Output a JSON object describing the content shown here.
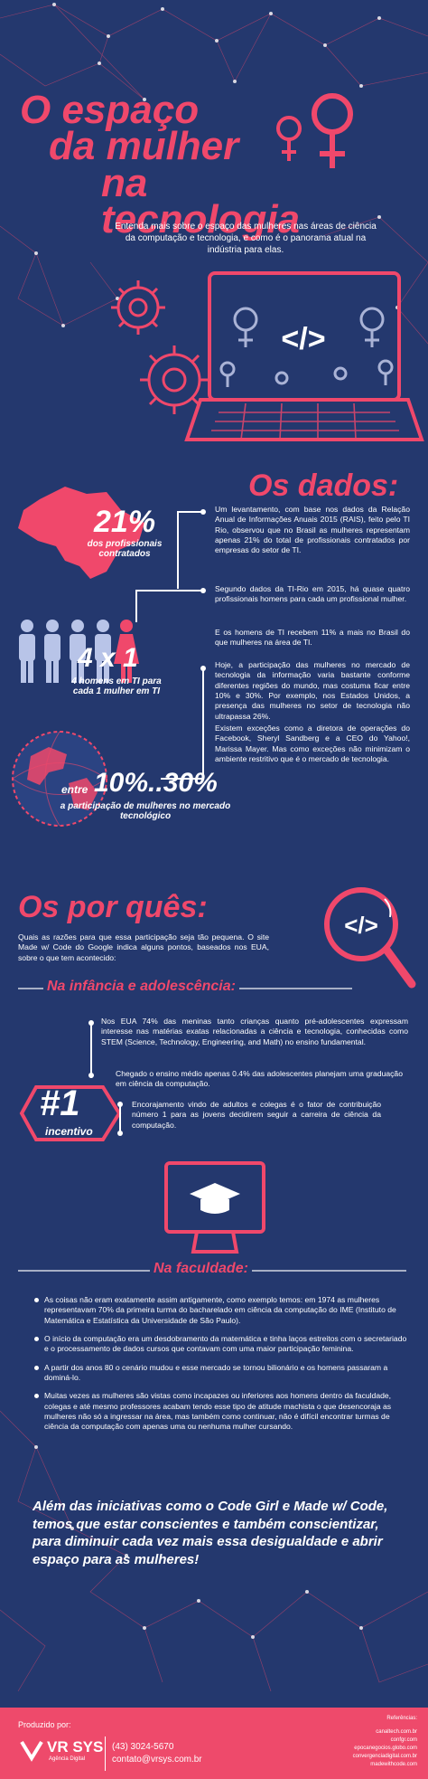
{
  "header": {
    "title_line1": "O espaço",
    "title_line2": "da mulher",
    "title_line3": "na tecnologia",
    "intro": "Entenda mais sobre o espaço das mulheres nas áreas de ciência da computação e tecnologia, e como é o panorama atual na indústria para elas.",
    "code_symbol": "</>"
  },
  "dados": {
    "heading": "Os dados:",
    "stat1_value": "21%",
    "stat1_label": "dos profissionais contratados",
    "text1": "Um levantamento, com base nos dados da Relação Anual de Informações Anuais 2015 (RAIS), feito pelo TI Rio, observou que no Brasil as mulheres representam apenas 21% do total de profissionais contratados por empresas do setor de TI.",
    "stat2_value": "4 x 1",
    "stat2_label": "4 homens em TI para cada 1 mulher em TI",
    "text2": "Segundo dados da TI-Rio em 2015, há quase quatro profissionais homens para cada um profissional mulher.",
    "text3": "E os homens de TI recebem 11% a mais no Brasil do que mulheres na área de TI.",
    "text4": "Hoje, a participação das mulheres no mercado de tecnologia da informação varia bastante conforme diferentes regiões do mundo, mas costuma ficar entre 10% e 30%. Por exemplo, nos Estados Unidos, a presença das mulheres no setor de tecnologia não ultrapassa 26%.",
    "text5": "Existem exceções como a diretora de operações do Facebook, Sheryl Sandberg e a CEO do Yahoo!, Marissa Mayer. Mas como exceções não minimizam o ambiente restritivo que é o mercado de tecnologia.",
    "stat3_prefix": "entre",
    "stat3_value": "10%..30%",
    "stat3_label": "a participação de mulheres no mercado tecnológico"
  },
  "porques": {
    "heading": "Os por quês:",
    "intro": "Quais as razões para que essa participação seja tão pequena. O site Made w/ Code do Google indica alguns pontos, baseados nos EUA, sobre o que tem acontecido:",
    "sub1": "Na infância e adolescência:",
    "text1": "Nos EUA 74% das meninas tanto crianças quanto pré-adolescentes expressam interesse nas matérias exatas relacionadas a ciência e tecnologia, conhecidas como STEM (Science, Technology, Engineering, and Math) no ensino fundamental.",
    "text2": "Chegado o ensino médio apenas 0.4% das adolescentes planejam uma graduação em ciência da computação.",
    "rank_value": "#1",
    "rank_label": "incentivo",
    "text3": "Encorajamento vindo de adultos e colegas é o fator de contribuição número 1 para as jovens decidirem seguir a carreira de ciência da computação.",
    "sub2": "Na faculdade:",
    "bullets": [
      "As coisas não eram exatamente assim antigamente, como exemplo temos: em 1974 as mulheres representavam 70% da primeira turma do bacharelado em ciência da computação do IME (Instituto de Matemática e Estatística da Universidade de São Paulo).",
      "O início da computação era um desdobramento da matemática e tinha laços estreitos com o secretariado e o processamento de dados cursos que contavam com uma maior participação feminina.",
      "A partir dos anos 80 o cenário mudou e esse mercado se tornou bilionário e os homens passaram a dominá-lo.",
      "Muitas vezes as mulheres são vistas como incapazes ou inferiores aos homens dentro da faculdade, colegas e até mesmo professores acabam tendo esse tipo de atitude machista o que desencoraja as mulheres não só a ingressar na área, mas também como continuar, não é difícil encontrar turmas de ciência da computação com apenas uma ou nenhuma mulher cursando."
    ],
    "closing": "Além das iniciativas como o Code Girl e Made w/ Code, temos que estar conscientes e também conscientizar, para diminuir cada vez mais essa desigualdade e abrir espaço para as mulheres!"
  },
  "footer": {
    "produced_by": "Produzido por:",
    "brand": "VR SYS",
    "brand_sub": "Agência Digital",
    "phone": "(43) 3024-5670",
    "email": "contato@vrsys.com.br",
    "refs_title": "Referências:",
    "refs": [
      "canaltech.com.br",
      "confgr.com",
      "epocanegocios.globo.com",
      "convergenciadigital.com.br",
      "madewithcode.com"
    ]
  },
  "colors": {
    "background": "#24386e",
    "accent": "#f0486b",
    "text": "#ffffff"
  },
  "icons": [
    "female-symbol-icon",
    "laptop-icon",
    "gear-icon",
    "brazil-map-icon",
    "people-icon",
    "globe-icon",
    "magnifier-icon",
    "graduation-cap-icon",
    "vr-logo-icon"
  ]
}
